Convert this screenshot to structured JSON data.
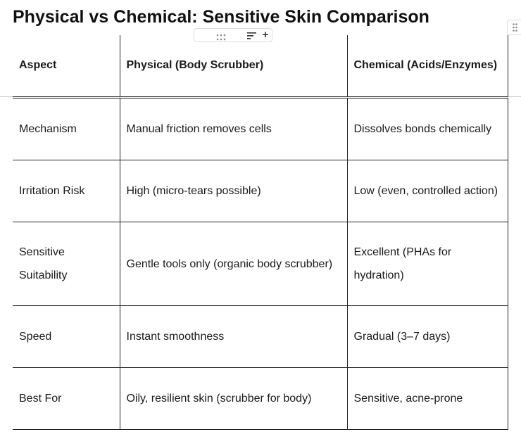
{
  "title": "Physical vs Chemical: Sensitive Skin Comparison",
  "table": {
    "headers": [
      "Aspect",
      "Physical (Body Scrubber)",
      "Chemical (Acids/Enzymes)"
    ],
    "rows": [
      [
        "Mechanism",
        "Manual friction removes cells",
        "Dissolves bonds chemically"
      ],
      [
        "Irritation Risk",
        "High (micro-tears possible)",
        "Low (even, controlled action)"
      ],
      [
        "Sensitive Suitability",
        "Gentle tools only (organic body scrubber)",
        "Excellent (PHAs for hydration)"
      ],
      [
        "Speed",
        "Instant smoothness",
        "Gradual (3–7 days)"
      ],
      [
        "Best For",
        "Oily, resilient skin (scrubber for body)",
        "Sensitive, acne-prone"
      ]
    ]
  },
  "toolbar": {
    "icons": [
      "drag-handle-icon",
      "sort-icon",
      "add-icon"
    ],
    "add_symbol": "+"
  },
  "colors": {
    "text": "#111111",
    "border": "#222222",
    "toolbar_border": "#dadce0"
  }
}
